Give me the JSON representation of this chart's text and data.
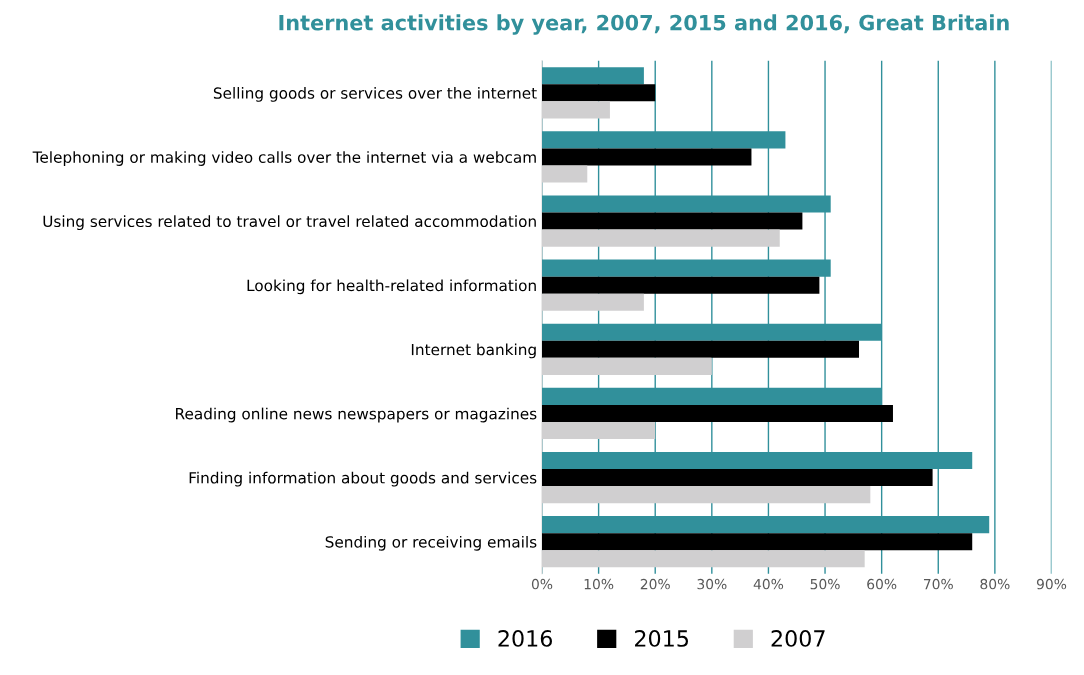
{
  "chart_data": {
    "type": "bar",
    "orientation": "horizontal",
    "title": "Internet activities by year, 2007, 2015 and 2016, Great Britain",
    "categories": [
      "Selling goods or services over the internet",
      "Telephoning or making video calls over the internet via a webcam",
      "Using services related to travel or travel related accommodation",
      "Looking for health-related information",
      "Internet banking",
      "Reading online news newspapers or magazines",
      "Finding information about goods and services",
      "Sending or receiving emails"
    ],
    "series": [
      {
        "name": "2016",
        "color": "#31909b",
        "values": [
          18,
          43,
          51,
          51,
          60,
          60,
          76,
          79
        ]
      },
      {
        "name": "2015",
        "color": "#000000",
        "values": [
          20,
          37,
          46,
          49,
          56,
          62,
          69,
          76
        ]
      },
      {
        "name": "2007",
        "color": "#d0cfd0",
        "values": [
          12,
          8,
          42,
          18,
          30,
          20,
          58,
          57
        ]
      }
    ],
    "xlim": [
      0,
      90
    ],
    "xticks": [
      {
        "value": 0,
        "label": "0%"
      },
      {
        "value": 10,
        "label": "10%"
      },
      {
        "value": 20,
        "label": "20%"
      },
      {
        "value": 30,
        "label": "30%"
      },
      {
        "value": 40,
        "label": "40%"
      },
      {
        "value": 50,
        "label": "50%"
      },
      {
        "value": 60,
        "label": "60%"
      },
      {
        "value": 70,
        "label": "70%"
      },
      {
        "value": 80,
        "label": "80%"
      },
      {
        "value": 90,
        "label": "90%"
      }
    ],
    "grid": "x",
    "legend": "bottom"
  }
}
